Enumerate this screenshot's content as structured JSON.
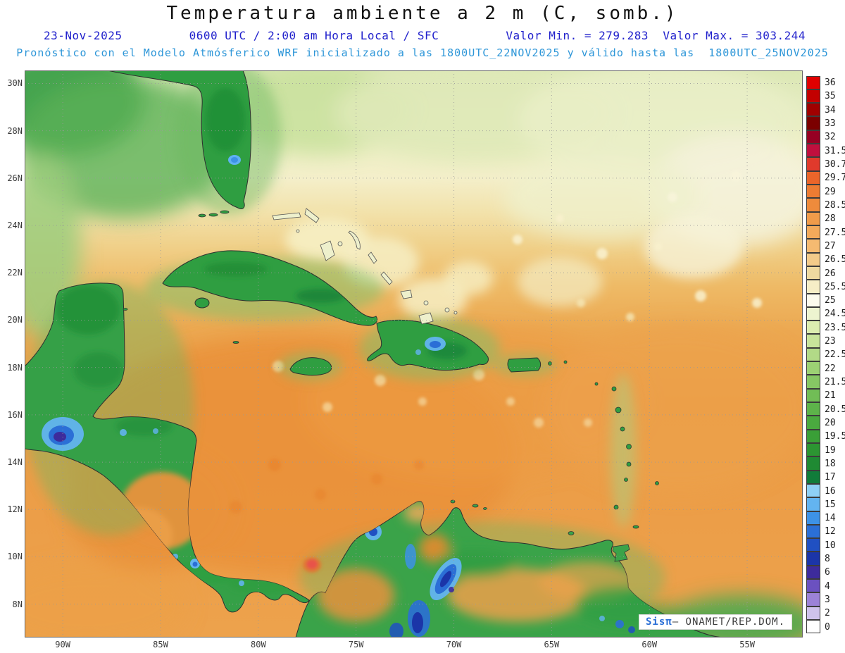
{
  "header": {
    "title": "Temperatura ambiente a 2 m (C, somb.)",
    "date": "23-Nov-2025",
    "run_info": "0600 UTC / 2:00 am Hora Local / SFC",
    "min_max": "Valor Min. = 279.283  Valor Max. = 303.244",
    "forecast_line": "Pronóstico con el Modelo Atmósferico WRF inicializado a las 1800UTC_22NOV2025 y válido hasta las  1800UTC_25NOV2025"
  },
  "axes": {
    "lat_ticks": [
      "30N",
      "28N",
      "26N",
      "24N",
      "22N",
      "20N",
      "18N",
      "16N",
      "14N",
      "12N",
      "10N",
      "8N"
    ],
    "lon_ticks": [
      "90W",
      "85W",
      "80W",
      "75W",
      "70W",
      "65W",
      "60W",
      "55W"
    ]
  },
  "legend": {
    "units": "C",
    "entries": [
      {
        "c": "#e00000",
        "v": "36"
      },
      {
        "c": "#c20000",
        "v": "35"
      },
      {
        "c": "#a00000",
        "v": "34"
      },
      {
        "c": "#7b0000",
        "v": "33"
      },
      {
        "c": "#960023",
        "v": "32"
      },
      {
        "c": "#c00f3e",
        "v": "31.5"
      },
      {
        "c": "#e03a2c",
        "v": "30.7"
      },
      {
        "c": "#ea652a",
        "v": "29.7"
      },
      {
        "c": "#ec7c33",
        "v": "29"
      },
      {
        "c": "#ee8b3c",
        "v": "28.5"
      },
      {
        "c": "#f09b4a",
        "v": "28"
      },
      {
        "c": "#f3aa5b",
        "v": "27.5"
      },
      {
        "c": "#f5ba71",
        "v": "27"
      },
      {
        "c": "#f3cb8a",
        "v": "26.5"
      },
      {
        "c": "#eed9a0",
        "v": "26"
      },
      {
        "c": "#f6eec6",
        "v": "25.5"
      },
      {
        "c": "#fcfbee",
        "v": "25"
      },
      {
        "c": "#edf4d0",
        "v": "24.5"
      },
      {
        "c": "#dcedb0",
        "v": "23.5"
      },
      {
        "c": "#c8e49b",
        "v": "23"
      },
      {
        "c": "#b2da87",
        "v": "22.5"
      },
      {
        "c": "#9cd174",
        "v": "22"
      },
      {
        "c": "#86c764",
        "v": "21.5"
      },
      {
        "c": "#71bd56",
        "v": "21"
      },
      {
        "c": "#5db34a",
        "v": "20.5"
      },
      {
        "c": "#4aa93f",
        "v": "20"
      },
      {
        "c": "#3a9f37",
        "v": "19.5"
      },
      {
        "c": "#2c9532",
        "v": "19"
      },
      {
        "c": "#1f8a33",
        "v": "18"
      },
      {
        "c": "#117c3a",
        "v": "17"
      },
      {
        "c": "#8fd0f5",
        "v": "16"
      },
      {
        "c": "#63b4f0",
        "v": "15"
      },
      {
        "c": "#3d92e6",
        "v": "14"
      },
      {
        "c": "#2b6fd6",
        "v": "12"
      },
      {
        "c": "#2050c2",
        "v": "10"
      },
      {
        "c": "#1b35a8",
        "v": "8"
      },
      {
        "c": "#3d2b9c",
        "v": "6"
      },
      {
        "c": "#6b51c0",
        "v": "4"
      },
      {
        "c": "#9c82d8",
        "v": "3"
      },
      {
        "c": "#cfc2ec",
        "v": "2"
      },
      {
        "c": "#ffffff",
        "v": "0"
      }
    ]
  },
  "footer": {
    "brand": "Sisπ",
    "credit": "– ONAMET/REP.DOM."
  }
}
